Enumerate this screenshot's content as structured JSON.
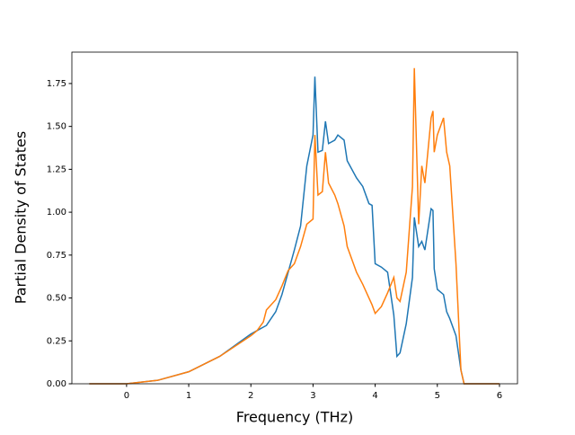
{
  "chart_data": {
    "type": "line",
    "xlabel": "Frequency (THz)",
    "ylabel": "Partial Density of States",
    "x": [
      -0.6,
      0,
      0.5,
      1,
      1.5,
      2,
      2.1,
      2.2,
      2.25,
      2.4,
      2.5,
      2.6,
      2.7,
      2.8,
      2.9,
      3.0,
      3.03,
      3.08,
      3.15,
      3.2,
      3.25,
      3.35,
      3.4,
      3.5,
      3.55,
      3.7,
      3.8,
      3.9,
      3.95,
      4.0,
      4.1,
      4.2,
      4.3,
      4.35,
      4.4,
      4.5,
      4.6,
      4.63,
      4.7,
      4.75,
      4.8,
      4.9,
      4.93,
      4.95,
      5.0,
      5.1,
      5.15,
      5.2,
      5.3,
      5.38,
      5.43,
      6.0
    ],
    "series": [
      {
        "color": "#1f77b4",
        "values": [
          0,
          0,
          0.02,
          0.07,
          0.16,
          0.29,
          0.31,
          0.33,
          0.34,
          0.42,
          0.52,
          0.65,
          0.78,
          0.92,
          1.27,
          1.45,
          1.79,
          1.35,
          1.36,
          1.53,
          1.4,
          1.42,
          1.45,
          1.42,
          1.3,
          1.2,
          1.15,
          1.05,
          1.04,
          0.7,
          0.68,
          0.65,
          0.4,
          0.16,
          0.18,
          0.35,
          0.62,
          0.97,
          0.8,
          0.83,
          0.78,
          1.02,
          1.01,
          0.67,
          0.55,
          0.52,
          0.42,
          0.38,
          0.28,
          0.08,
          0,
          0
        ]
      },
      {
        "color": "#ff7f0e",
        "values": [
          0,
          0,
          0.02,
          0.07,
          0.16,
          0.28,
          0.31,
          0.36,
          0.43,
          0.49,
          0.57,
          0.66,
          0.7,
          0.8,
          0.93,
          0.96,
          1.45,
          1.1,
          1.12,
          1.35,
          1.17,
          1.1,
          1.05,
          0.92,
          0.8,
          0.65,
          0.58,
          0.5,
          0.46,
          0.41,
          0.45,
          0.53,
          0.62,
          0.5,
          0.48,
          0.65,
          1.15,
          1.84,
          0.93,
          1.27,
          1.17,
          1.55,
          1.59,
          1.35,
          1.45,
          1.55,
          1.35,
          1.27,
          0.7,
          0.08,
          0,
          0
        ]
      }
    ],
    "xlim": [
      -0.88,
      6.29
    ],
    "xticks": [
      0,
      1,
      2,
      3,
      4,
      5,
      6
    ],
    "ylim": [
      0,
      1.933
    ],
    "yticks": [
      {
        "value": 0,
        "label": "0.00"
      },
      {
        "value": 0.25,
        "label": "0.25"
      },
      {
        "value": 0.5,
        "label": "0.50"
      },
      {
        "value": 0.75,
        "label": "0.75"
      },
      {
        "value": 1.0,
        "label": "1.00"
      },
      {
        "value": 1.25,
        "label": "1.25"
      },
      {
        "value": 1.5,
        "label": "1.50"
      },
      {
        "value": 1.75,
        "label": "1.75"
      }
    ]
  }
}
